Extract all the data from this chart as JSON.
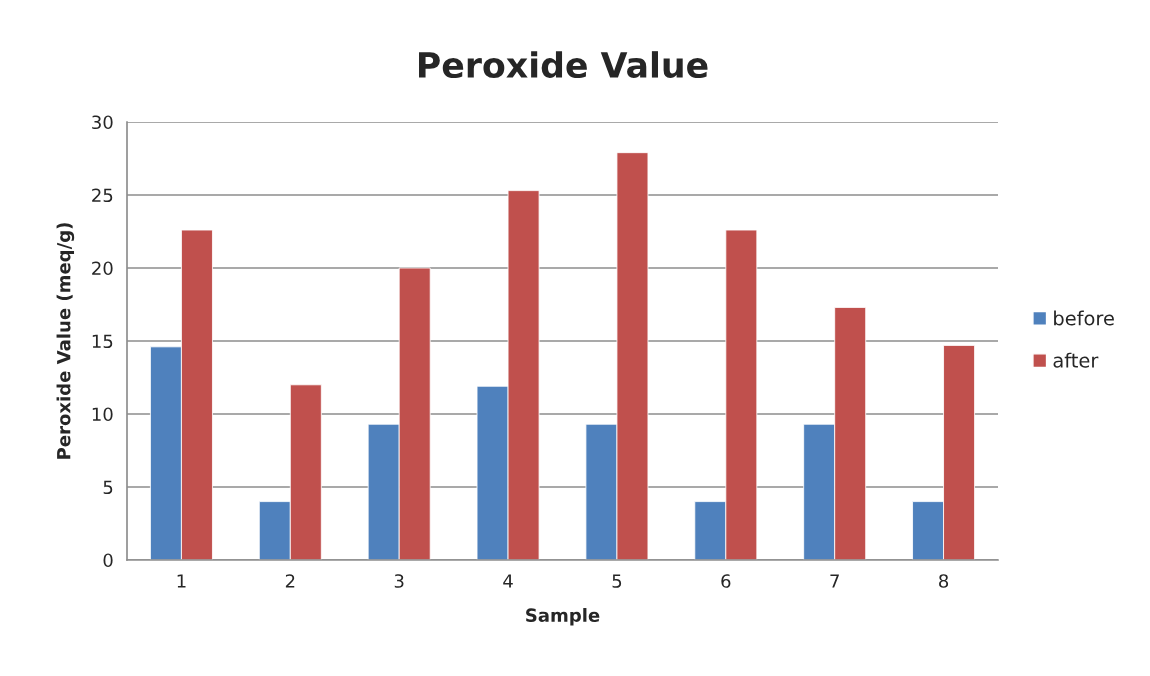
{
  "chart_data": {
    "type": "bar",
    "title": "Peroxide Value",
    "xlabel": "Sample",
    "ylabel": "Peroxide Value (meq/g)",
    "categories": [
      "1",
      "2",
      "3",
      "4",
      "5",
      "6",
      "7",
      "8"
    ],
    "series": [
      {
        "name": "before",
        "color": "#4f81bd",
        "values": [
          14.6,
          4.0,
          9.3,
          11.9,
          9.3,
          4.0,
          9.3,
          4.0
        ]
      },
      {
        "name": "after",
        "color": "#c0504d",
        "values": [
          22.6,
          12.0,
          20.0,
          25.3,
          27.9,
          22.6,
          17.3,
          14.7
        ]
      }
    ],
    "ylim": [
      0,
      30
    ],
    "yticks": [
      0,
      5,
      10,
      15,
      20,
      25,
      30
    ],
    "grid": "y",
    "legend": "right"
  }
}
